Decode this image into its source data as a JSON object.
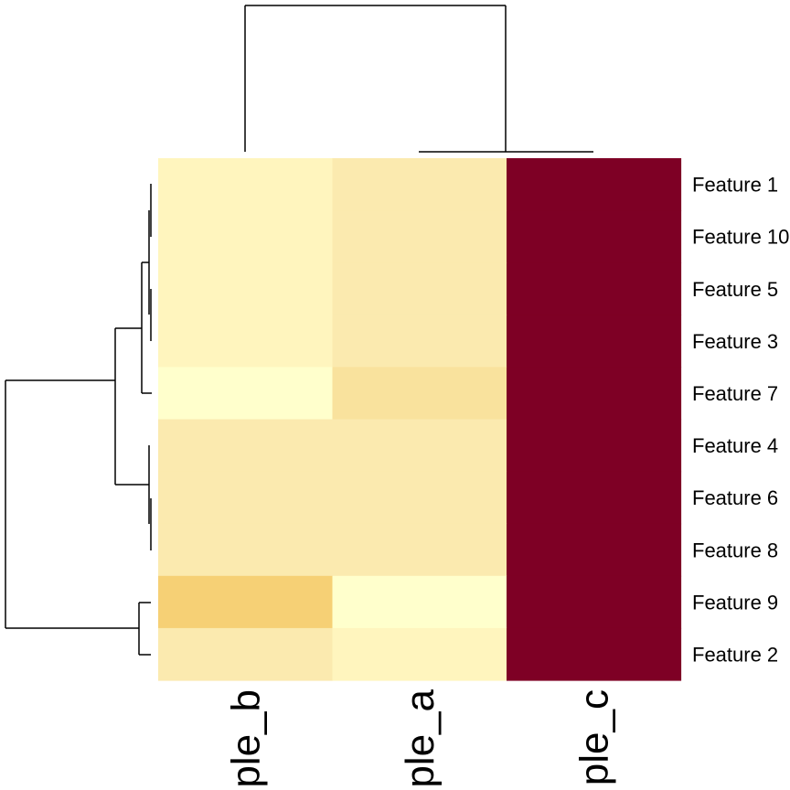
{
  "chart_data": {
    "type": "heatmap",
    "title": "",
    "xlabel": "",
    "ylabel": "",
    "columns": [
      "ple_b",
      "ple_a",
      "ple_c"
    ],
    "rows": [
      "Feature 1",
      "Feature 10",
      "Feature 5",
      "Feature 3",
      "Feature 7",
      "Feature 4",
      "Feature 6",
      "Feature 8",
      "Feature 9",
      "Feature 2"
    ],
    "values": [
      [
        2,
        4,
        10
      ],
      [
        2,
        4,
        10
      ],
      [
        2,
        4,
        10
      ],
      [
        2,
        4,
        10
      ],
      [
        1,
        5,
        10
      ],
      [
        3,
        3,
        10
      ],
      [
        3,
        3,
        10
      ],
      [
        3,
        3,
        10
      ],
      [
        6,
        1,
        10
      ],
      [
        4,
        2,
        10
      ]
    ],
    "color_scale": [
      "#FFFFCC",
      "#FFF5BE",
      "#FBEAAF",
      "#F9E29D",
      "#F6D075",
      "#F7B93C",
      "#F4A300",
      "#7E0025"
    ],
    "value_range": [
      1,
      10
    ],
    "grid": false,
    "legend": "none",
    "row_dendrogram": "left",
    "column_dendrogram": "top"
  }
}
